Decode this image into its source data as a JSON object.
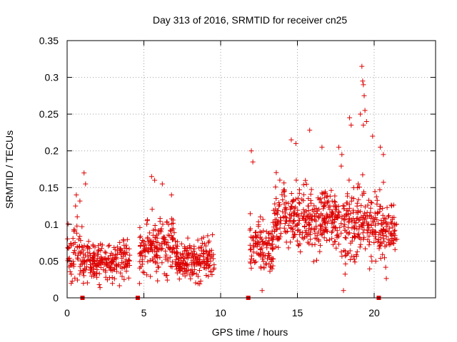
{
  "chart_data": {
    "type": "scatter",
    "title": "Day 313 of 2016, SRMTID for receiver cn25",
    "xlabel": "GPS time / hours",
    "ylabel": "SRMTID / TECUs",
    "xlim": [
      0,
      24
    ],
    "ylim": [
      0,
      0.35
    ],
    "xticks": [
      0,
      5,
      10,
      15,
      20
    ],
    "yticks": [
      0,
      0.05,
      0.1,
      0.15,
      0.2,
      0.25,
      0.3,
      0.35
    ],
    "ytick_labels": [
      "0",
      "0.05",
      "0.1",
      "0.15",
      "0.2",
      "0.25",
      "0.3",
      "0.35"
    ],
    "grid": true,
    "marker": "+",
    "color": "#dd0000",
    "description_segments": [
      {
        "x_start": 0.0,
        "x_end": 1.0,
        "mean": 0.065,
        "spread": 0.03,
        "count": 60
      },
      {
        "x_start": 1.0,
        "x_end": 4.1,
        "mean": 0.05,
        "spread": 0.018,
        "count": 220
      },
      {
        "x_start": 4.7,
        "x_end": 7.0,
        "mean": 0.068,
        "spread": 0.025,
        "count": 170
      },
      {
        "x_start": 7.0,
        "x_end": 9.6,
        "mean": 0.052,
        "spread": 0.018,
        "count": 200
      },
      {
        "x_start": 11.9,
        "x_end": 13.5,
        "mean": 0.07,
        "spread": 0.025,
        "count": 120
      },
      {
        "x_start": 13.5,
        "x_end": 17.5,
        "mean": 0.108,
        "spread": 0.028,
        "count": 330
      },
      {
        "x_start": 17.5,
        "x_end": 20.4,
        "mean": 0.1,
        "spread": 0.032,
        "count": 220
      },
      {
        "x_start": 20.4,
        "x_end": 21.5,
        "mean": 0.09,
        "spread": 0.025,
        "count": 80
      }
    ],
    "outliers": [
      {
        "x": 0.6,
        "y": 0.14
      },
      {
        "x": 0.55,
        "y": 0.125
      },
      {
        "x": 1.1,
        "y": 0.17
      },
      {
        "x": 1.2,
        "y": 0.155
      },
      {
        "x": 5.5,
        "y": 0.165
      },
      {
        "x": 5.7,
        "y": 0.16
      },
      {
        "x": 6.2,
        "y": 0.155
      },
      {
        "x": 6.8,
        "y": 0.14
      },
      {
        "x": 12.0,
        "y": 0.2
      },
      {
        "x": 12.1,
        "y": 0.185
      },
      {
        "x": 14.6,
        "y": 0.215
      },
      {
        "x": 14.9,
        "y": 0.21
      },
      {
        "x": 15.8,
        "y": 0.228
      },
      {
        "x": 16.6,
        "y": 0.205
      },
      {
        "x": 17.7,
        "y": 0.205
      },
      {
        "x": 17.9,
        "y": 0.195
      },
      {
        "x": 18.4,
        "y": 0.245
      },
      {
        "x": 18.5,
        "y": 0.235
      },
      {
        "x": 19.2,
        "y": 0.315
      },
      {
        "x": 19.25,
        "y": 0.295
      },
      {
        "x": 19.3,
        "y": 0.29
      },
      {
        "x": 19.35,
        "y": 0.275
      },
      {
        "x": 19.4,
        "y": 0.255
      },
      {
        "x": 19.1,
        "y": 0.25
      },
      {
        "x": 19.5,
        "y": 0.24
      },
      {
        "x": 19.3,
        "y": 0.235
      },
      {
        "x": 19.9,
        "y": 0.22
      },
      {
        "x": 20.4,
        "y": 0.205
      },
      {
        "x": 20.6,
        "y": 0.195
      },
      {
        "x": 18.0,
        "y": 0.01
      },
      {
        "x": 12.7,
        "y": 0.01
      }
    ],
    "gap_markers_x": [
      1.0,
      4.6,
      11.8,
      20.3
    ]
  }
}
